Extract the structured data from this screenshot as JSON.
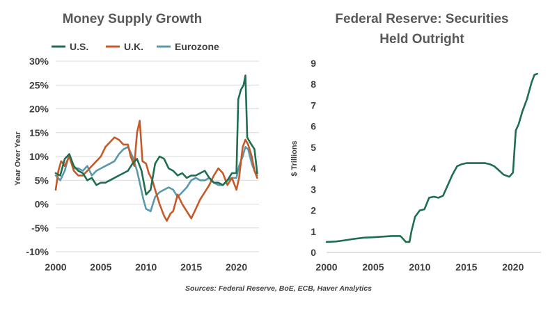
{
  "source_text": "Sources: Federal Reserve, BoE, ECB, Haver Analytics",
  "colors": {
    "us": "#1e6e4f",
    "uk": "#c55a28",
    "eurozone": "#5b98ab",
    "grid": "#d9d9d9",
    "text": "#404040",
    "title": "#595959"
  },
  "chart_data": [
    {
      "type": "line",
      "title": "Money Supply Growth",
      "xlabel": "",
      "ylabel": "Year Over Year",
      "xlim": [
        2000,
        2022.5
      ],
      "ylim": [
        -10,
        30
      ],
      "x_ticks": [
        2000,
        2005,
        2010,
        2015,
        2020
      ],
      "x_tick_labels": [
        "2000",
        "2005",
        "2010",
        "2015",
        "2020"
      ],
      "y_ticks": [
        -10,
        -5,
        0,
        5,
        10,
        15,
        20,
        25,
        30
      ],
      "y_tick_labels": [
        "-10%",
        "-5%",
        "0%",
        "5%",
        "10%",
        "15%",
        "20%",
        "25%",
        "30%"
      ],
      "grid": true,
      "legend": "top",
      "series": [
        {
          "name": "U.S.",
          "color": "#1e6e4f",
          "x": [
            2000,
            2000.5,
            2001,
            2001.5,
            2002,
            2002.5,
            2003,
            2003.5,
            2004,
            2004.5,
            2005,
            2005.5,
            2006,
            2006.5,
            2007,
            2007.5,
            2008,
            2008.5,
            2009,
            2009.5,
            2010,
            2010.5,
            2011,
            2011.5,
            2012,
            2012.5,
            2013,
            2013.5,
            2014,
            2014.5,
            2015,
            2015.5,
            2016,
            2016.5,
            2017,
            2017.5,
            2018,
            2018.5,
            2019,
            2019.5,
            2020,
            2020.2,
            2020.5,
            2020.8,
            2021,
            2021.2,
            2021.5,
            2022,
            2022.3
          ],
          "values": [
            6.5,
            6.0,
            9.5,
            10.5,
            8.0,
            7.0,
            6.5,
            5.0,
            5.5,
            4.0,
            4.5,
            4.5,
            5.0,
            5.5,
            6.0,
            6.5,
            7.0,
            8.5,
            9.5,
            7.0,
            2.0,
            3.0,
            8.5,
            10.0,
            9.5,
            7.5,
            7.0,
            6.0,
            6.5,
            5.5,
            6.0,
            6.0,
            6.5,
            7.0,
            5.5,
            4.5,
            4.5,
            4.0,
            5.0,
            6.5,
            6.5,
            22.0,
            24.0,
            25.0,
            27.0,
            14.0,
            13.0,
            11.5,
            6.5
          ]
        },
        {
          "name": "U.K.",
          "color": "#c55a28",
          "x": [
            2000,
            2000.3,
            2000.6,
            2001,
            2001.5,
            2002,
            2002.5,
            2003,
            2003.5,
            2004,
            2004.5,
            2005,
            2005.5,
            2006,
            2006.5,
            2007,
            2007.5,
            2008,
            2008.3,
            2008.7,
            2009,
            2009.3,
            2009.6,
            2010,
            2010.3,
            2010.7,
            2011,
            2011.5,
            2012,
            2012.3,
            2012.7,
            2013,
            2013.5,
            2014,
            2014.5,
            2015,
            2015.5,
            2016,
            2016.5,
            2017,
            2017.5,
            2018,
            2018.5,
            2019,
            2019.5,
            2020,
            2020.3,
            2020.7,
            2021,
            2021.3,
            2021.7,
            2022,
            2022.3
          ],
          "values": [
            3.0,
            7.0,
            9.0,
            8.0,
            10.0,
            7.0,
            6.0,
            6.0,
            7.0,
            8.0,
            9.0,
            10.0,
            12.0,
            13.0,
            14.0,
            13.5,
            12.5,
            12.5,
            10.0,
            8.0,
            15.0,
            17.5,
            9.0,
            8.5,
            6.5,
            5.0,
            3.0,
            0.0,
            -2.5,
            -3.5,
            -2.0,
            -1.5,
            2.0,
            0.0,
            -1.5,
            -3.0,
            -1.0,
            1.0,
            2.5,
            4.0,
            6.0,
            7.5,
            6.5,
            4.0,
            5.5,
            3.0,
            5.5,
            12.0,
            13.5,
            12.5,
            10.0,
            7.0,
            5.5
          ]
        },
        {
          "name": "Eurozone",
          "color": "#5b98ab",
          "x": [
            2000,
            2000.5,
            2001,
            2001.5,
            2002,
            2002.5,
            2003,
            2003.5,
            2004,
            2004.5,
            2005,
            2005.5,
            2006,
            2006.5,
            2007,
            2007.5,
            2008,
            2008.5,
            2009,
            2009.3,
            2009.7,
            2010,
            2010.5,
            2011,
            2011.5,
            2012,
            2012.5,
            2013,
            2013.5,
            2014,
            2014.5,
            2015,
            2015.5,
            2016,
            2016.5,
            2017,
            2017.5,
            2018,
            2018.5,
            2019,
            2019.5,
            2020,
            2020.3,
            2020.7,
            2021,
            2021.3,
            2021.7,
            2022,
            2022.3
          ],
          "values": [
            6.0,
            5.0,
            7.0,
            10.5,
            7.5,
            7.5,
            7.0,
            8.0,
            6.0,
            7.0,
            7.5,
            8.0,
            8.5,
            9.0,
            10.5,
            11.5,
            12.0,
            10.0,
            7.0,
            4.5,
            1.0,
            -1.0,
            -1.5,
            1.5,
            2.5,
            3.0,
            3.5,
            3.0,
            1.5,
            2.5,
            3.5,
            5.0,
            5.5,
            5.0,
            5.0,
            5.5,
            4.5,
            4.0,
            4.0,
            5.0,
            5.5,
            5.5,
            8.0,
            10.0,
            12.0,
            11.5,
            8.5,
            7.0,
            6.0
          ]
        }
      ]
    },
    {
      "type": "line",
      "title": "Federal Reserve: Securities Held Outright",
      "title_lines": [
        "Federal Reserve: Securities",
        "Held Outright"
      ],
      "xlabel": "",
      "ylabel": "$ Trillions",
      "xlim": [
        2000,
        2023
      ],
      "ylim": [
        0,
        9
      ],
      "x_ticks": [
        2000,
        2005,
        2010,
        2015,
        2020
      ],
      "x_tick_labels": [
        "2000",
        "2005",
        "2010",
        "2015",
        "2020"
      ],
      "y_ticks": [
        0,
        1,
        2,
        3,
        4,
        5,
        6,
        7,
        8,
        9
      ],
      "y_tick_labels": [
        "0",
        "1",
        "2",
        "3",
        "4",
        "5",
        "6",
        "7",
        "8",
        "9"
      ],
      "grid": false,
      "series": [
        {
          "name": "Securities Held Outright",
          "color": "#1e6e4f",
          "x": [
            2000,
            2001,
            2002,
            2003,
            2004,
            2005,
            2006,
            2007,
            2007.9,
            2008.1,
            2008.5,
            2008.9,
            2009.1,
            2009.5,
            2010,
            2010.5,
            2011,
            2011.5,
            2012,
            2012.5,
            2013,
            2013.5,
            2014,
            2014.5,
            2015,
            2016,
            2017,
            2017.5,
            2018,
            2018.5,
            2019,
            2019.6,
            2020,
            2020.1,
            2020.3,
            2020.6,
            2021,
            2021.5,
            2022,
            2022.3,
            2022.6
          ],
          "values": [
            0.5,
            0.52,
            0.58,
            0.65,
            0.7,
            0.72,
            0.75,
            0.78,
            0.78,
            0.7,
            0.5,
            0.5,
            1.0,
            1.7,
            2.0,
            2.05,
            2.6,
            2.65,
            2.6,
            2.7,
            3.2,
            3.7,
            4.1,
            4.2,
            4.25,
            4.25,
            4.25,
            4.2,
            4.1,
            3.9,
            3.7,
            3.6,
            3.8,
            4.5,
            5.8,
            6.1,
            6.7,
            7.3,
            8.1,
            8.45,
            8.5
          ]
        }
      ]
    }
  ]
}
